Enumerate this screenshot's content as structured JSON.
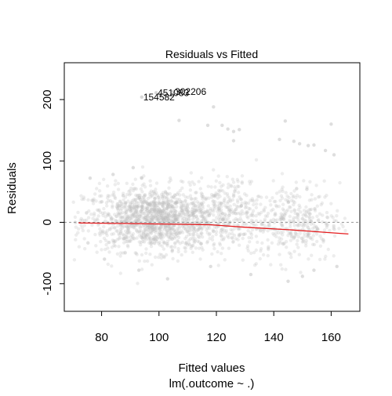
{
  "chart_data": {
    "type": "scatter",
    "title": "Residuals vs Fitted",
    "xlabel": "Fitted values",
    "subtitle": "lm(.outcome ~ .)",
    "ylabel": "Residuals",
    "xlim": [
      67,
      170
    ],
    "ylim": [
      -145,
      260
    ],
    "x_ticks": [
      80,
      100,
      120,
      140,
      160
    ],
    "y_ticks": [
      -100,
      0,
      100,
      200
    ],
    "x_tick_labels": [
      "80",
      "100",
      "120",
      "140",
      "160"
    ],
    "y_tick_labels": [
      "-100",
      "0",
      "100",
      "200"
    ],
    "reference_line_y": 0,
    "point_color": "#bdbdbd",
    "smooth_color": "#e41a1c",
    "smooth_line": {
      "x": [
        72,
        90,
        105,
        118,
        130,
        145,
        166
      ],
      "y": [
        -1,
        -2,
        -3,
        -4,
        -8,
        -12,
        -19
      ]
    },
    "labeled_points": [
      {
        "label": "302206",
        "x": 105.0,
        "y": 213
      },
      {
        "label": "451083",
        "x": 99.0,
        "y": 211
      },
      {
        "label": "154582",
        "x": 94.0,
        "y": 204
      }
    ],
    "highlight_points": [
      {
        "x": 107,
        "y": 166
      },
      {
        "x": 119,
        "y": 188
      },
      {
        "x": 117,
        "y": 158
      },
      {
        "x": 122,
        "y": 158
      },
      {
        "x": 124,
        "y": 152
      },
      {
        "x": 126,
        "y": 148
      },
      {
        "x": 128,
        "y": 151
      },
      {
        "x": 126,
        "y": 133
      },
      {
        "x": 142,
        "y": 135
      },
      {
        "x": 144,
        "y": 165
      },
      {
        "x": 147,
        "y": 132
      },
      {
        "x": 149,
        "y": 128
      },
      {
        "x": 152,
        "y": 125
      },
      {
        "x": 154,
        "y": 126
      },
      {
        "x": 160,
        "y": 160
      },
      {
        "x": 161,
        "y": 110
      },
      {
        "x": 158,
        "y": 117
      },
      {
        "x": 91,
        "y": 89
      },
      {
        "x": 94,
        "y": 72
      },
      {
        "x": 84,
        "y": 78
      },
      {
        "x": 76,
        "y": 72
      },
      {
        "x": 93,
        "y": -78
      },
      {
        "x": 132,
        "y": -85
      },
      {
        "x": 145,
        "y": -96
      },
      {
        "x": 150,
        "y": -88
      },
      {
        "x": 154,
        "y": -78
      },
      {
        "x": 162,
        "y": -72
      },
      {
        "x": 103,
        "y": -92
      },
      {
        "x": 118,
        "y": -72
      },
      {
        "x": 81,
        "y": -60
      }
    ],
    "cloud_clusters": [
      {
        "cx": 100,
        "cy": 5,
        "sx": 13,
        "sy": 26,
        "n": 1500
      },
      {
        "cx": 147,
        "cy": 0,
        "sx": 8,
        "sy": 32,
        "n": 380
      },
      {
        "cx": 126,
        "cy": 20,
        "sx": 5,
        "sy": 30,
        "n": 160
      }
    ]
  }
}
